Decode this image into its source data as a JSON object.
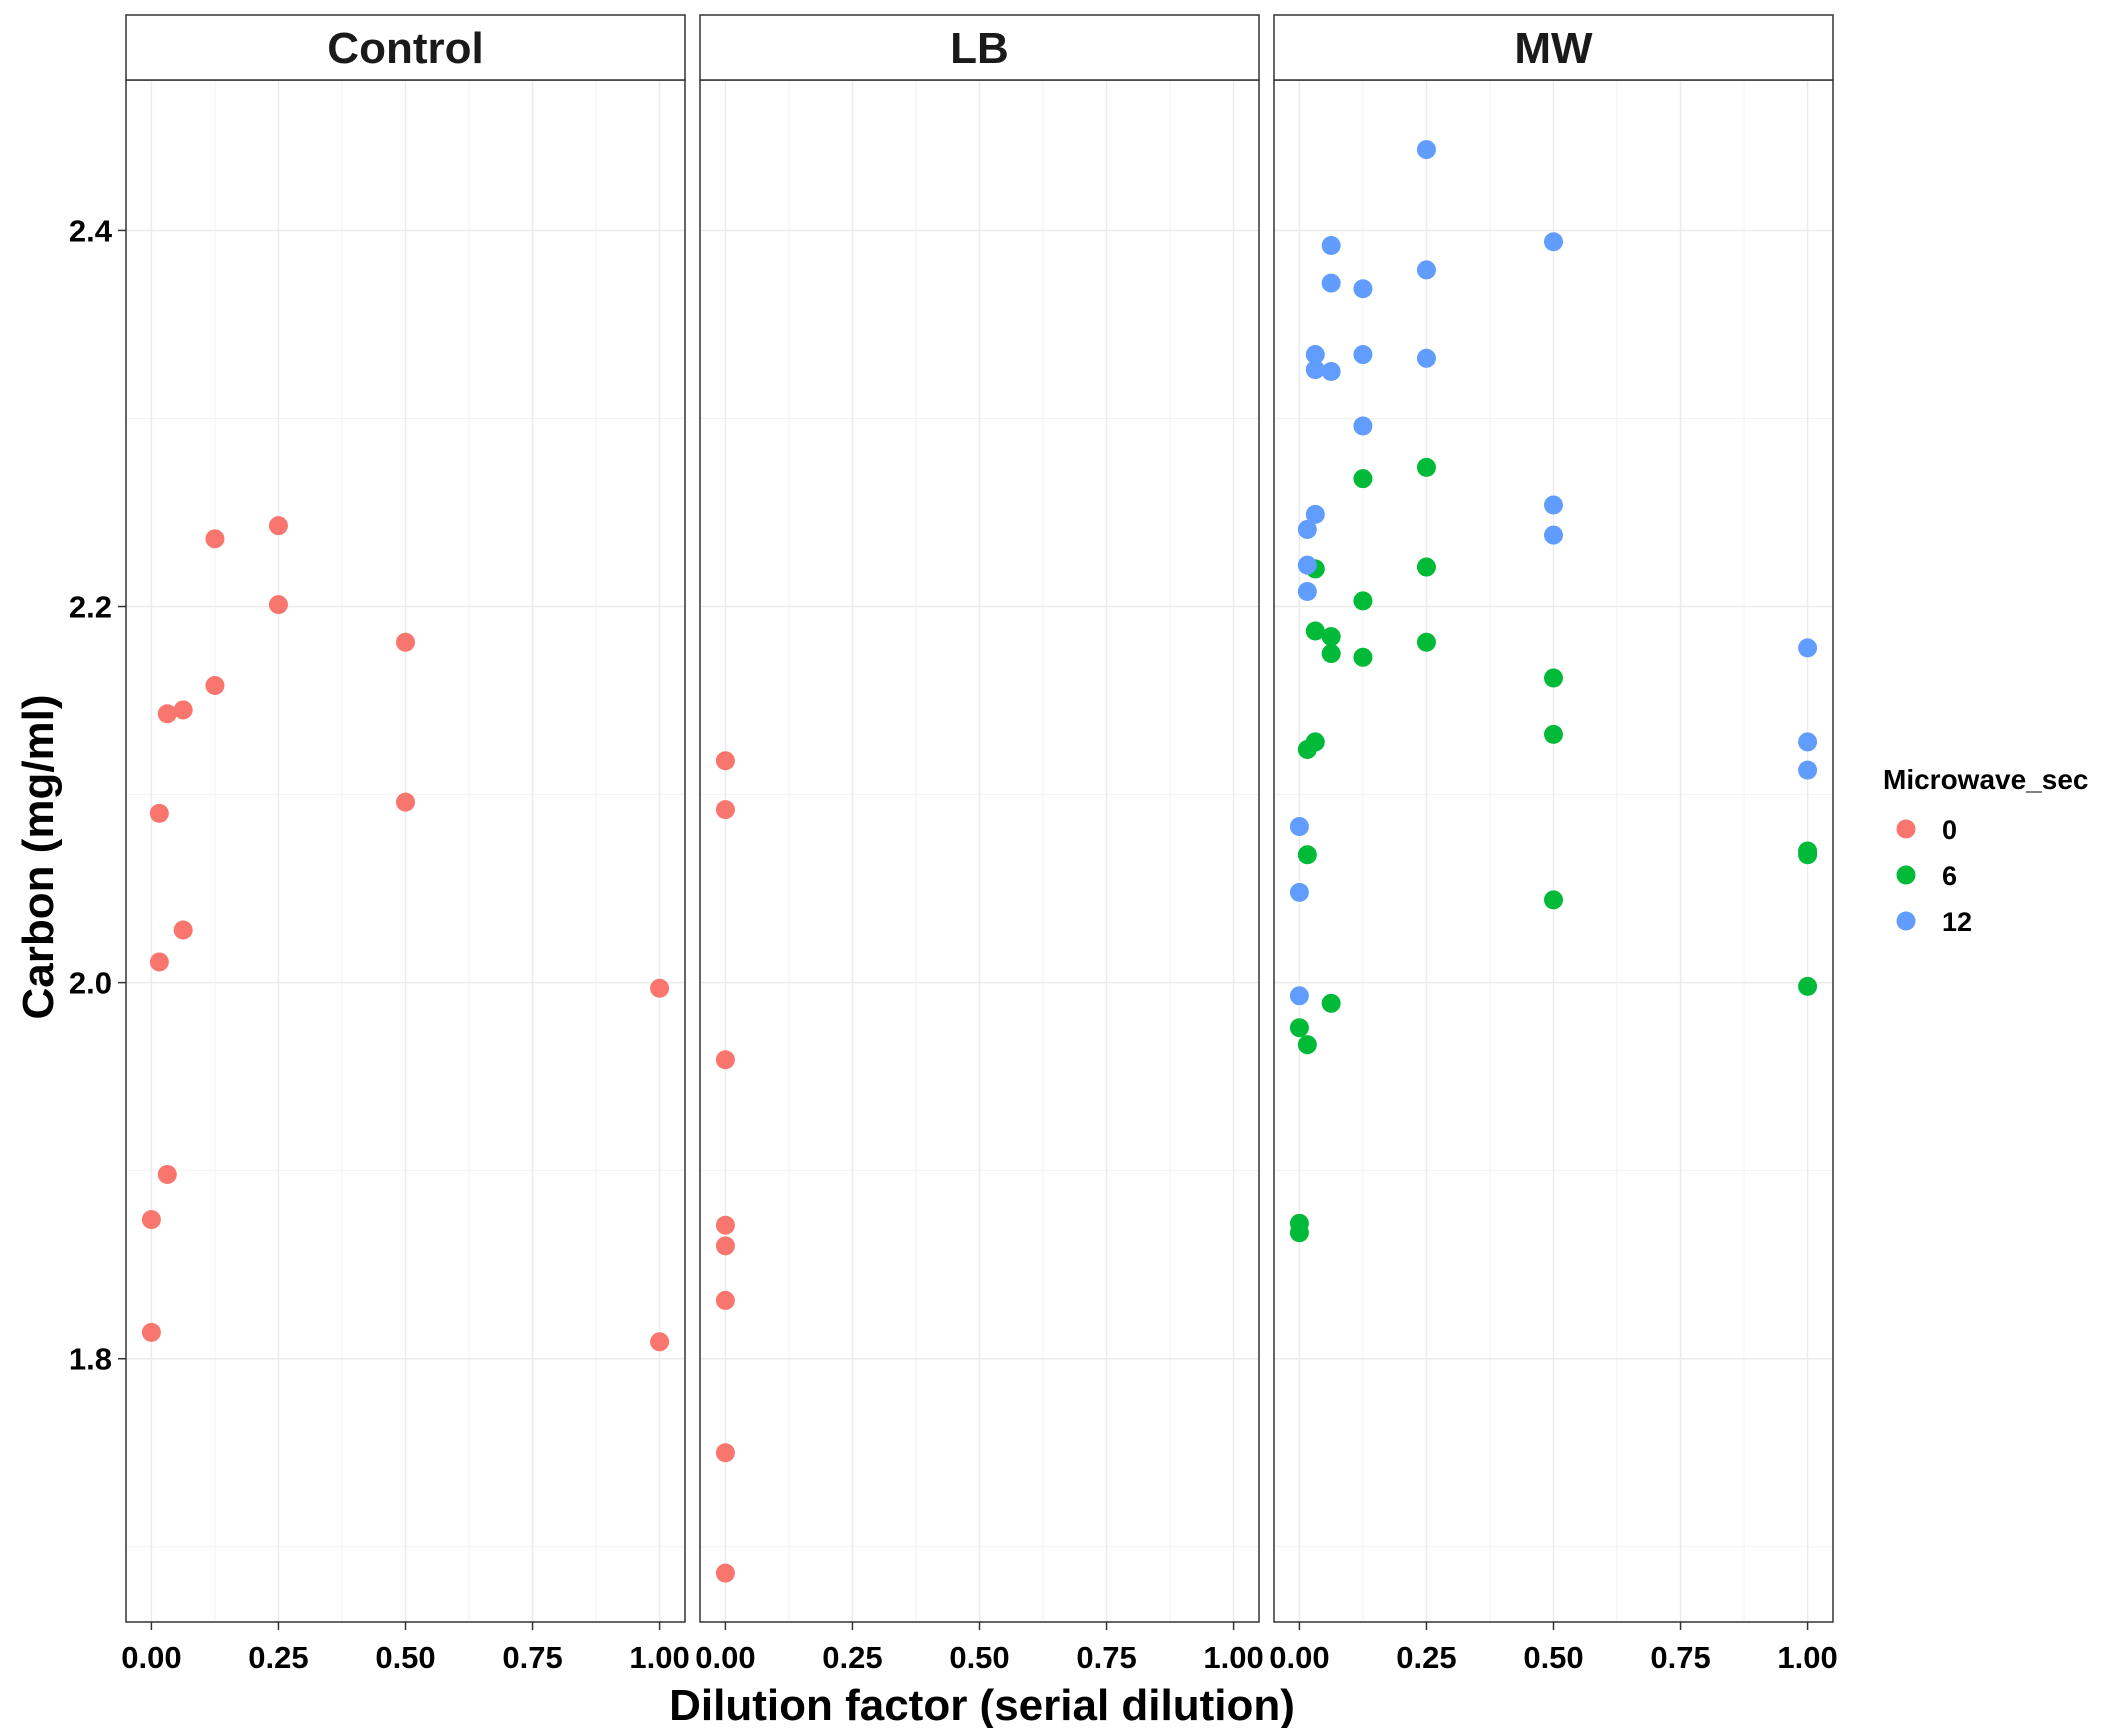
{
  "chart_data": {
    "type": "scatter",
    "xlabel": "Dilution factor (serial dilution)",
    "ylabel": "Carbon (mg/ml)",
    "xlim": [
      -0.05,
      1.05
    ],
    "ylim": [
      1.66,
      2.48
    ],
    "x_ticks": [
      0.0,
      0.25,
      0.5,
      0.75,
      1.0
    ],
    "x_tick_labels": [
      "0.00",
      "0.25",
      "0.50",
      "0.75",
      "1.00"
    ],
    "y_ticks": [
      1.8,
      2.0,
      2.2,
      2.4
    ],
    "y_tick_labels": [
      "1.8",
      "2.0",
      "2.2",
      "2.4"
    ],
    "grid": true,
    "legend": {
      "title": "Microwave_sec",
      "position": "right",
      "entries": [
        {
          "label": "0",
          "color": "#F8766D"
        },
        {
          "label": "6",
          "color": "#00BA38"
        },
        {
          "label": "12",
          "color": "#619CFF"
        }
      ]
    },
    "panels": [
      {
        "title": "Control",
        "series": [
          {
            "name": "0",
            "color": "#F8766D",
            "points": [
              [
                0.0,
                1.874
              ],
              [
                0.0,
                1.814
              ],
              [
                0.0156,
                2.09
              ],
              [
                0.0156,
                2.011
              ],
              [
                0.03125,
                2.143
              ],
              [
                0.03125,
                1.898
              ],
              [
                0.0625,
                2.145
              ],
              [
                0.0625,
                2.028
              ],
              [
                0.125,
                2.236
              ],
              [
                0.125,
                2.158
              ],
              [
                0.25,
                2.243
              ],
              [
                0.25,
                2.201
              ],
              [
                0.5,
                2.181
              ],
              [
                0.5,
                2.096
              ],
              [
                1.0,
                1.997
              ],
              [
                1.0,
                1.809
              ]
            ]
          }
        ]
      },
      {
        "title": "LB",
        "series": [
          {
            "name": "0",
            "color": "#F8766D",
            "points": [
              [
                0.0,
                2.118
              ],
              [
                0.0,
                2.092
              ],
              [
                0.0,
                1.959
              ],
              [
                0.0,
                1.871
              ],
              [
                0.0,
                1.86
              ],
              [
                0.0,
                1.831
              ],
              [
                0.0,
                1.75
              ],
              [
                0.0,
                1.686
              ]
            ]
          }
        ]
      },
      {
        "title": "MW",
        "series": [
          {
            "name": "6",
            "color": "#00BA38",
            "points": [
              [
                0.0,
                1.976
              ],
              [
                0.0,
                1.872
              ],
              [
                0.0,
                1.867
              ],
              [
                0.0156,
                2.124
              ],
              [
                0.0156,
                2.068
              ],
              [
                0.0156,
                1.967
              ],
              [
                0.03125,
                2.22
              ],
              [
                0.03125,
                2.187
              ],
              [
                0.03125,
                2.128
              ],
              [
                0.0625,
                2.184
              ],
              [
                0.0625,
                2.175
              ],
              [
                0.0625,
                1.989
              ],
              [
                0.125,
                2.268
              ],
              [
                0.125,
                2.203
              ],
              [
                0.125,
                2.173
              ],
              [
                0.25,
                2.274
              ],
              [
                0.25,
                2.221
              ],
              [
                0.25,
                2.181
              ],
              [
                0.5,
                2.162
              ],
              [
                0.5,
                2.132
              ],
              [
                0.5,
                2.044
              ],
              [
                1.0,
                2.07
              ],
              [
                1.0,
                2.068
              ],
              [
                1.0,
                1.998
              ]
            ]
          },
          {
            "name": "12",
            "color": "#619CFF",
            "points": [
              [
                0.0,
                2.083
              ],
              [
                0.0,
                2.048
              ],
              [
                0.0,
                1.993
              ],
              [
                0.0156,
                2.241
              ],
              [
                0.0156,
                2.222
              ],
              [
                0.0156,
                2.208
              ],
              [
                0.03125,
                2.334
              ],
              [
                0.03125,
                2.326
              ],
              [
                0.03125,
                2.249
              ],
              [
                0.0625,
                2.392
              ],
              [
                0.0625,
                2.372
              ],
              [
                0.0625,
                2.325
              ],
              [
                0.125,
                2.369
              ],
              [
                0.125,
                2.334
              ],
              [
                0.125,
                2.296
              ],
              [
                0.25,
                2.443
              ],
              [
                0.25,
                2.379
              ],
              [
                0.25,
                2.332
              ],
              [
                0.5,
                2.394
              ],
              [
                0.5,
                2.254
              ],
              [
                0.5,
                2.238
              ],
              [
                1.0,
                2.178
              ],
              [
                1.0,
                2.128
              ],
              [
                1.0,
                2.113
              ]
            ]
          }
        ]
      }
    ]
  }
}
